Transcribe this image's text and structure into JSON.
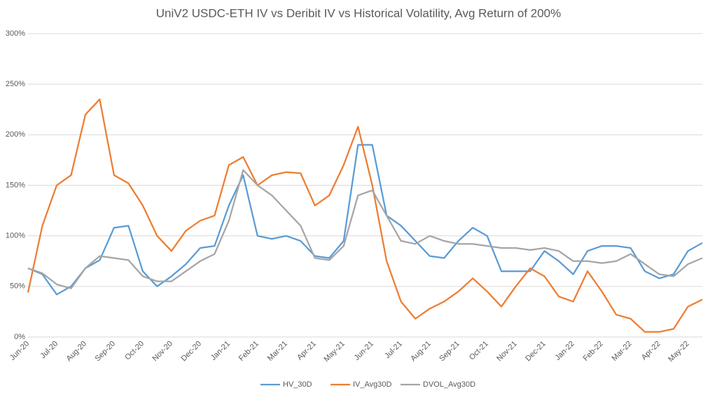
{
  "chart_data": {
    "type": "line",
    "title": "UniV2 USDC-ETH IV vs Deribit IV vs Historical Volatility, Avg Return of 200%",
    "categories": [
      "Jun-20",
      null,
      "Jul-20",
      null,
      "Aug-20",
      null,
      "Sep-20",
      null,
      "Oct-20",
      null,
      "Nov-20",
      null,
      "Dec-20",
      null,
      "Jan-21",
      null,
      "Feb-21",
      null,
      "Mar-21",
      null,
      "Apr-21",
      null,
      "May-21",
      null,
      "Jun-21",
      null,
      "Jul-21",
      null,
      "Aug-21",
      null,
      "Sep-21",
      null,
      "Oct-21",
      null,
      "Nov-21",
      null,
      "Dec-21",
      null,
      "Jan-22",
      null,
      "Feb-22",
      null,
      "Mar-22",
      null,
      "Apr-22",
      null,
      "May-22",
      null
    ],
    "series": [
      {
        "name": "HV_30D",
        "color": "#5b9bd5",
        "values": [
          68,
          62,
          42,
          50,
          68,
          76,
          108,
          110,
          65,
          50,
          60,
          72,
          88,
          90,
          130,
          160,
          100,
          97,
          100,
          95,
          80,
          78,
          95,
          190,
          190,
          120,
          110,
          95,
          80,
          78,
          95,
          108,
          100,
          65,
          65,
          65,
          85,
          75,
          62,
          85,
          90,
          90,
          88,
          65,
          58,
          62,
          85,
          93
        ]
      },
      {
        "name": "IV_Avg30D",
        "color": "#ed7d31",
        "values": [
          44,
          110,
          150,
          160,
          220,
          235,
          160,
          152,
          130,
          100,
          85,
          105,
          115,
          120,
          170,
          178,
          150,
          160,
          163,
          162,
          130,
          140,
          170,
          208,
          150,
          75,
          35,
          18,
          28,
          35,
          45,
          58,
          45,
          30,
          50,
          68,
          60,
          40,
          35,
          65,
          45,
          22,
          18,
          5,
          5,
          8,
          30,
          37
        ]
      },
      {
        "name": "DVOL_Avg30D",
        "color": "#a5a5a5",
        "values": [
          68,
          63,
          52,
          48,
          68,
          80,
          78,
          76,
          60,
          55,
          55,
          65,
          75,
          82,
          115,
          165,
          150,
          140,
          125,
          110,
          78,
          76,
          90,
          140,
          145,
          120,
          95,
          92,
          100,
          95,
          92,
          92,
          90,
          88,
          88,
          86,
          88,
          85,
          75,
          75,
          73,
          75,
          82,
          72,
          62,
          60,
          72,
          78
        ]
      }
    ],
    "ylim": [
      0,
      300
    ],
    "yticks": [
      {
        "value": 0,
        "label": "0%"
      },
      {
        "value": 50,
        "label": "50%"
      },
      {
        "value": 100,
        "label": "100%"
      },
      {
        "value": 150,
        "label": "150%"
      },
      {
        "value": 200,
        "label": "200%"
      },
      {
        "value": 250,
        "label": "250%"
      },
      {
        "value": 300,
        "label": "300%"
      }
    ],
    "grid": true,
    "legend": "bottom"
  }
}
